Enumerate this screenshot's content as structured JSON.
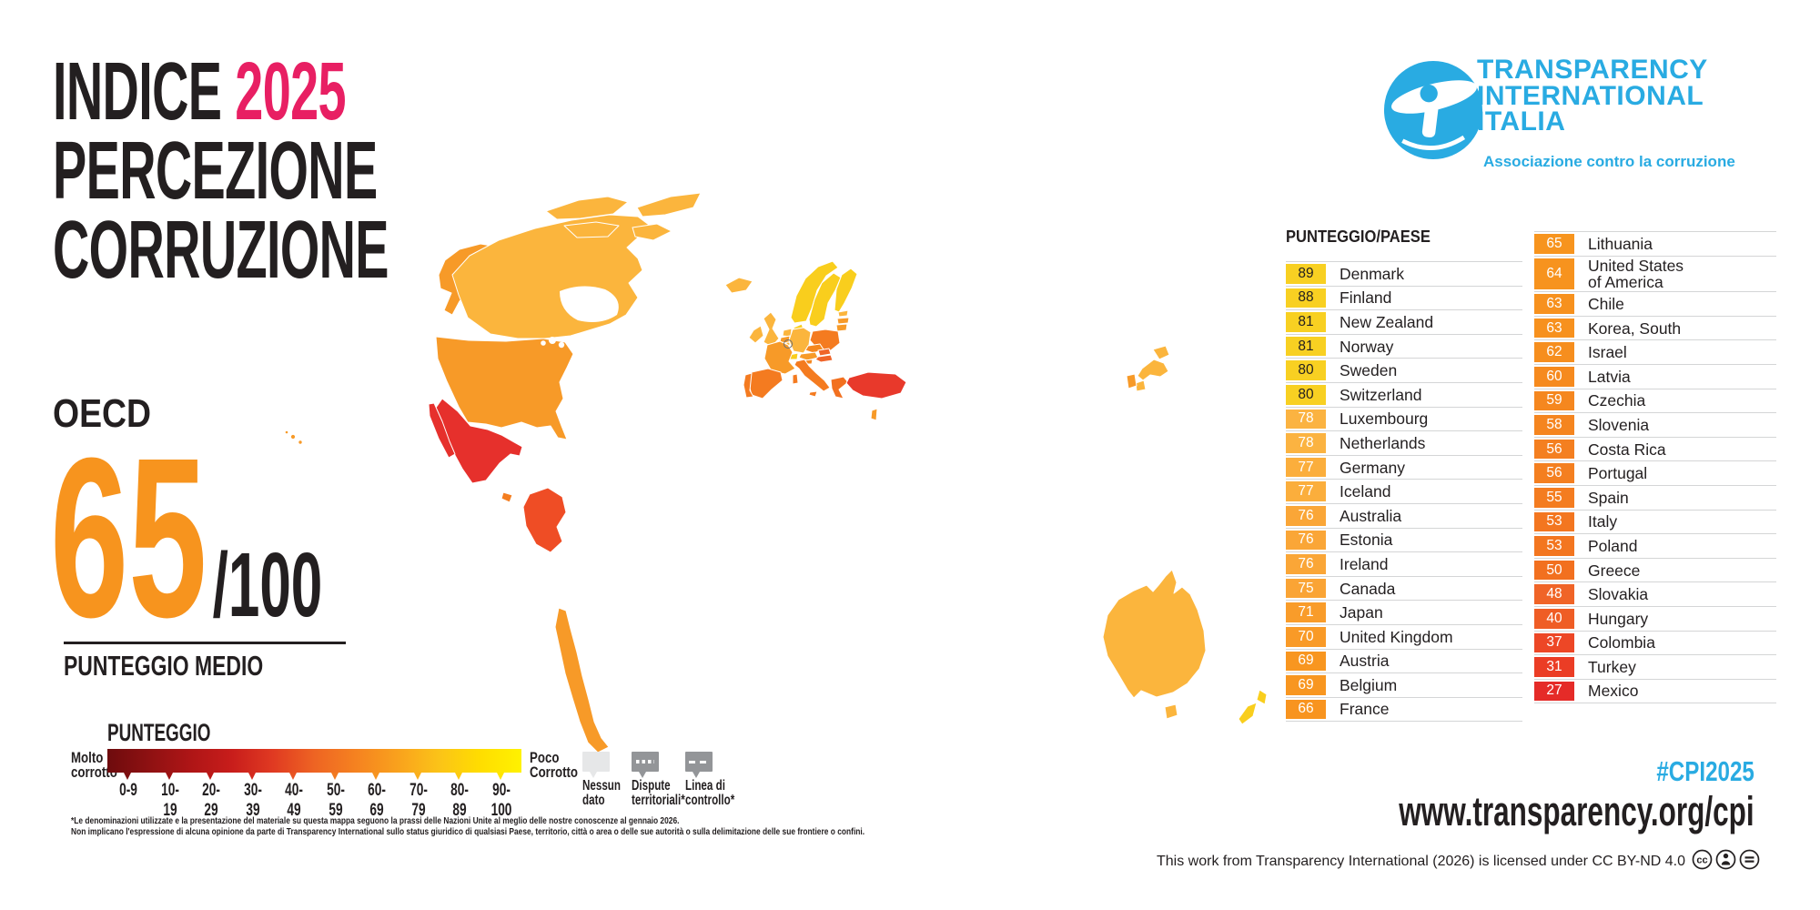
{
  "title": {
    "line1_black": "INDICE",
    "line1_accent": "2025",
    "line2": "PERCEZIONE",
    "line3": "CORRUZIONE",
    "accent_color": "#E81F63"
  },
  "logo": {
    "line1": "TRANSPARENCY",
    "line2": "INTERNATIONAL",
    "line3": "ITALIA",
    "tagline": "Associazione contro la corruzione",
    "brand_color": "#29ABE2"
  },
  "score_panel": {
    "region_label": "OECD",
    "score": "65",
    "score_suffix": "/100",
    "score_color": "#F7941E",
    "caption": "PUNTEGGIO MEDIO"
  },
  "legend": {
    "title": "PUNTEGGIO",
    "left_label_line1": "Molto",
    "left_label_line2": "corrotto",
    "right_label_line1": "Poco",
    "right_label_line2": "Corrotto",
    "scale_labels": [
      "0-9",
      "10-19",
      "20-29",
      "30-39",
      "40-49",
      "50-59",
      "60-69",
      "70-79",
      "80-89",
      "90-100"
    ],
    "gradient_stops": [
      "#6E0B0D",
      "#8E1112",
      "#AE1516",
      "#C81D1B",
      "#E03A22",
      "#EE6423",
      "#F58220",
      "#F9A11D",
      "#FBC318",
      "#FFDD00",
      "#FFF200"
    ],
    "tick_colors": [
      "#7E0E0F",
      "#9E1213",
      "#BB1817",
      "#D42A1E",
      "#E85423",
      "#F27A21",
      "#F79420",
      "#FAAF1B",
      "#FDCB10",
      "#FFE600"
    ],
    "map_keys": [
      {
        "label_line1": "Nessun",
        "label_line2": "dato",
        "fill": "#E6E7E8",
        "pattern": "none"
      },
      {
        "label_line1": "Dispute",
        "label_line2": "territoriali*",
        "fill": "#939598",
        "pattern": "dots"
      },
      {
        "label_line1": "Linea di",
        "label_line2": "controllo*",
        "fill": "#939598",
        "pattern": "dashes"
      }
    ],
    "footnote_line1": "*Le denominazioni utilizzate e la presentazione del materiale su questa mappa seguono la prassi delle Nazioni Unite al meglio delle nostre conoscenze al gennaio 2026.",
    "footnote_line2": "Non implicano l'espressione di alcuna opinione da parte di Transparency International sullo status giuridico di qualsiasi Paese, territorio, città o area o delle sue autorità o sulla delimitazione delle sue frontiere o confini."
  },
  "table": {
    "header": "PUNTEGGIO/PAESE",
    "col1": [
      {
        "score": "89",
        "name": "Denmark",
        "bg": "#F8D022",
        "fg": "#231F20"
      },
      {
        "score": "88",
        "name": "Finland",
        "bg": "#F8D022",
        "fg": "#231F20"
      },
      {
        "score": "81",
        "name": "New Zealand",
        "bg": "#F8D022",
        "fg": "#231F20"
      },
      {
        "score": "81",
        "name": "Norway",
        "bg": "#F8D022",
        "fg": "#231F20"
      },
      {
        "score": "80",
        "name": "Sweden",
        "bg": "#F8D022",
        "fg": "#231F20"
      },
      {
        "score": "80",
        "name": "Switzerland",
        "bg": "#F8D022",
        "fg": "#231F20"
      },
      {
        "score": "78",
        "name": "Luxembourg",
        "bg": "#FBB341",
        "fg": "#FFFFFF"
      },
      {
        "score": "78",
        "name": "Netherlands",
        "bg": "#FBB341",
        "fg": "#FFFFFF"
      },
      {
        "score": "77",
        "name": "Germany",
        "bg": "#FBAE3C",
        "fg": "#FFFFFF"
      },
      {
        "score": "77",
        "name": "Iceland",
        "bg": "#FBAE3C",
        "fg": "#FFFFFF"
      },
      {
        "score": "76",
        "name": "Australia",
        "bg": "#FAA637",
        "fg": "#FFFFFF"
      },
      {
        "score": "76",
        "name": "Estonia",
        "bg": "#FAA637",
        "fg": "#FFFFFF"
      },
      {
        "score": "76",
        "name": "Ireland",
        "bg": "#FAA637",
        "fg": "#FFFFFF"
      },
      {
        "score": "75",
        "name": "Canada",
        "bg": "#FAA435",
        "fg": "#FFFFFF"
      },
      {
        "score": "71",
        "name": "Japan",
        "bg": "#F99C2A",
        "fg": "#FFFFFF"
      },
      {
        "score": "70",
        "name": "United Kingdom",
        "bg": "#F99A27",
        "fg": "#FFFFFF"
      },
      {
        "score": "69",
        "name": "Austria",
        "bg": "#F89620",
        "fg": "#FFFFFF"
      },
      {
        "score": "69",
        "name": "Belgium",
        "bg": "#F89620",
        "fg": "#FFFFFF"
      },
      {
        "score": "66",
        "name": "France",
        "bg": "#F8941F",
        "fg": "#FFFFFF"
      }
    ],
    "col2": [
      {
        "score": "65",
        "name": "Lithuania",
        "bg": "#F7941E",
        "fg": "#FFFFFF"
      },
      {
        "score": "64",
        "name": "United States",
        "name2": "of America",
        "bg": "#F7931E",
        "fg": "#FFFFFF"
      },
      {
        "score": "63",
        "name": "Chile",
        "bg": "#F7911E",
        "fg": "#FFFFFF"
      },
      {
        "score": "63",
        "name": "Korea, South",
        "bg": "#F7911E",
        "fg": "#FFFFFF"
      },
      {
        "score": "62",
        "name": "Israel",
        "bg": "#F68E1E",
        "fg": "#FFFFFF"
      },
      {
        "score": "60",
        "name": "Latvia",
        "bg": "#F68A1E",
        "fg": "#FFFFFF"
      },
      {
        "score": "59",
        "name": "Czechia",
        "bg": "#F5871F",
        "fg": "#FFFFFF"
      },
      {
        "score": "58",
        "name": "Slovenia",
        "bg": "#F5851F",
        "fg": "#FFFFFF"
      },
      {
        "score": "56",
        "name": "Costa Rica",
        "bg": "#F47F20",
        "fg": "#FFFFFF"
      },
      {
        "score": "56",
        "name": "Portugal",
        "bg": "#F47F20",
        "fg": "#FFFFFF"
      },
      {
        "score": "55",
        "name": "Spain",
        "bg": "#F47C20",
        "fg": "#FFFFFF"
      },
      {
        "score": "53",
        "name": "Italy",
        "bg": "#F37620",
        "fg": "#FFFFFF"
      },
      {
        "score": "53",
        "name": "Poland",
        "bg": "#F37620",
        "fg": "#FFFFFF"
      },
      {
        "score": "50",
        "name": "Greece",
        "bg": "#F2701F",
        "fg": "#FFFFFF"
      },
      {
        "score": "48",
        "name": "Slovakia",
        "bg": "#F06427",
        "fg": "#FFFFFF"
      },
      {
        "score": "40",
        "name": "Hungary",
        "bg": "#EF5D25",
        "fg": "#FFFFFF"
      },
      {
        "score": "37",
        "name": "Colombia",
        "bg": "#ED4726",
        "fg": "#FFFFFF"
      },
      {
        "score": "31",
        "name": "Turkey",
        "bg": "#EB3D25",
        "fg": "#FFFFFF"
      },
      {
        "score": "27",
        "name": "Mexico",
        "bg": "#E52B28",
        "fg": "#FFFFFF"
      }
    ]
  },
  "map": {
    "fills": {
      "canada": "#FBB53D",
      "usa": "#F79A28",
      "mexico": "#E6302C",
      "costa_rica": "#F47E20",
      "colombia": "#EF4D25",
      "chile": "#F79A28",
      "iceland": "#FBB53D",
      "norway": "#F9CE1D",
      "sweden": "#F9CE1D",
      "finland": "#F9CE1D",
      "denmark": "#F9CE1D",
      "uk": "#FBB53D",
      "ireland": "#FBB53D",
      "estonia": "#FBB53D",
      "latvia": "#F79A28",
      "lithuania": "#F79A28",
      "netherlands": "#FBB53D",
      "belgium": "#F79A28",
      "luxembourg": "#FBB53D",
      "germany": "#FBB53D",
      "poland": "#F47B20",
      "france": "#F79A28",
      "switzerland": "#F9CE1D",
      "austria": "#F79A28",
      "czechia": "#F5871F",
      "slovakia": "#F0652A",
      "hungary": "#F0652A",
      "slovenia": "#F5871F",
      "italy": "#F47B20",
      "spain": "#F47B20",
      "portugal": "#F47B20",
      "greece": "#F2701F",
      "turkey": "#E8392B",
      "israel": "#F79A28",
      "japan": "#FBB53D",
      "south_korea": "#F79A28",
      "australia": "#FBB53D",
      "new_zealand": "#F9CE1D"
    }
  },
  "footer": {
    "hashtag": "#CPI2025",
    "url": "www.transparency.org/cpi",
    "license": "This work from Transparency International (2026) is licensed under CC BY-ND 4.0",
    "cc_icons": [
      "cc-icon",
      "attribution-icon",
      "no-derivatives-icon"
    ]
  }
}
